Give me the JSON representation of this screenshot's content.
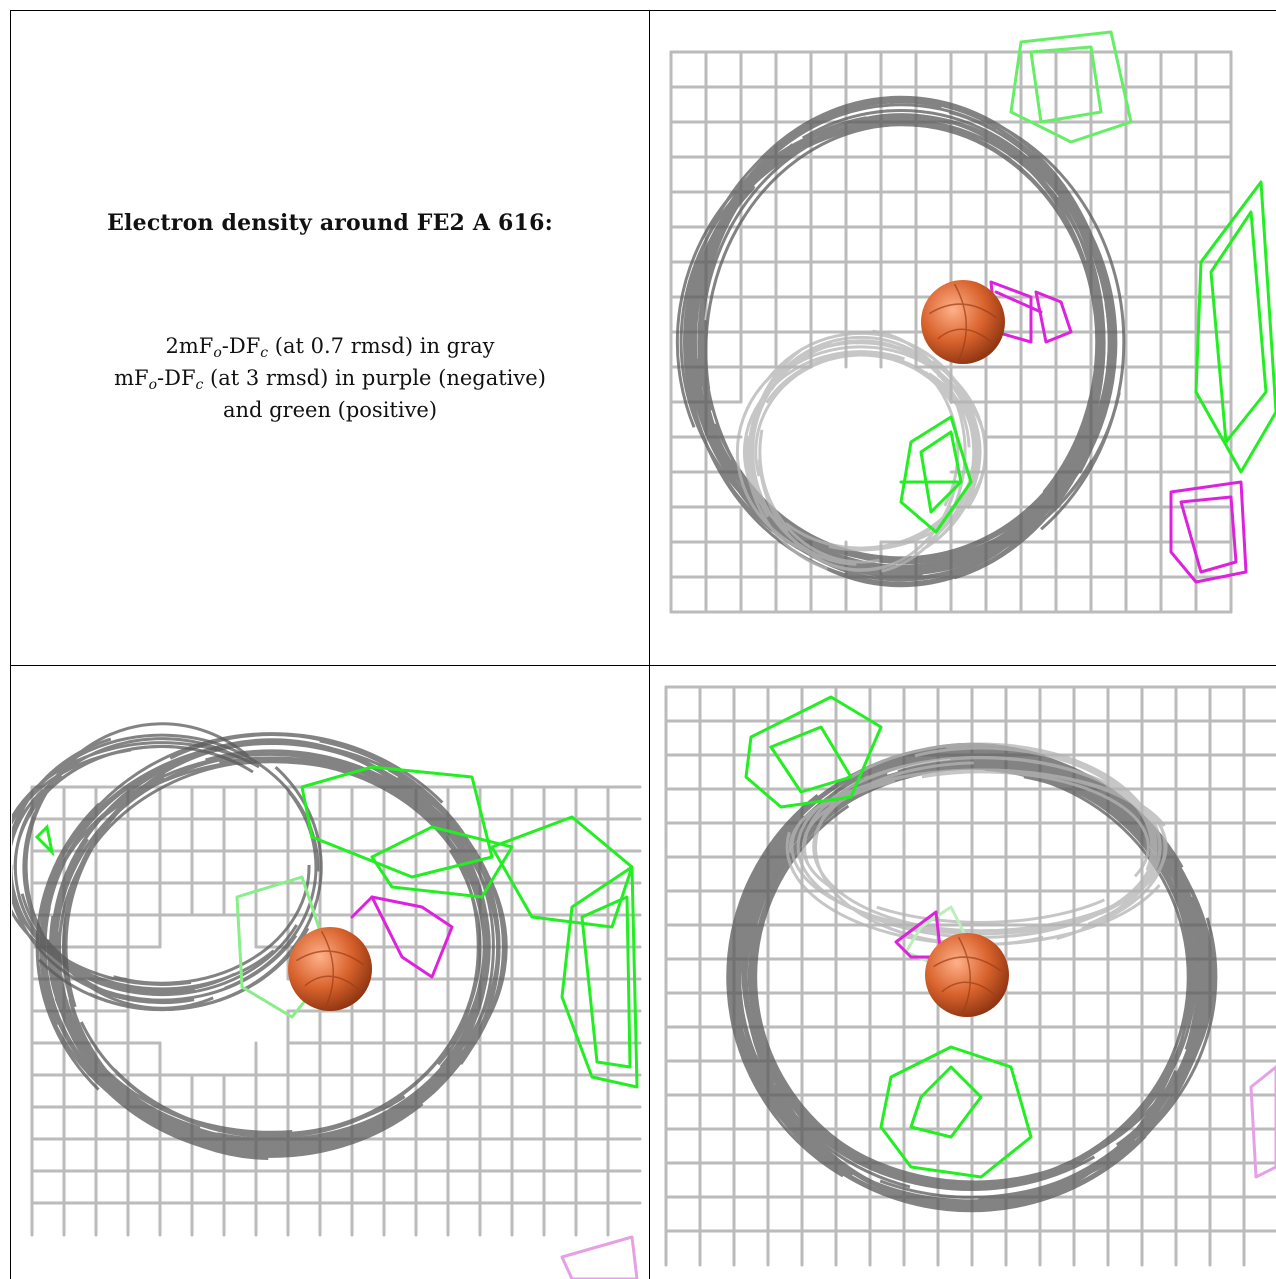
{
  "caption": {
    "title": "Electron density around FE2 A 616:",
    "line1": {
      "a": "2mF",
      "o": "o",
      "b": "-DF",
      "c": "c",
      "rest": " (at 0.7 rmsd) in gray"
    },
    "line2": {
      "a": "mF",
      "o": "o",
      "b": "-DF",
      "c": "c",
      "rest": " (at 3 rmsd) in purple (negative)"
    },
    "line3": "and green (positive)"
  },
  "colors": {
    "mesh_gray": "#b4b4b4",
    "mesh_dark": "#5a5a5a",
    "positive_green": "#22ee22",
    "negative_purple": "#dd22dd",
    "iron_sphere": "#d8622c"
  },
  "panels": [
    {
      "name": "view-1",
      "icon": "electron-density-mesh"
    },
    {
      "name": "view-2",
      "icon": "electron-density-mesh"
    },
    {
      "name": "view-3",
      "icon": "electron-density-mesh"
    }
  ]
}
